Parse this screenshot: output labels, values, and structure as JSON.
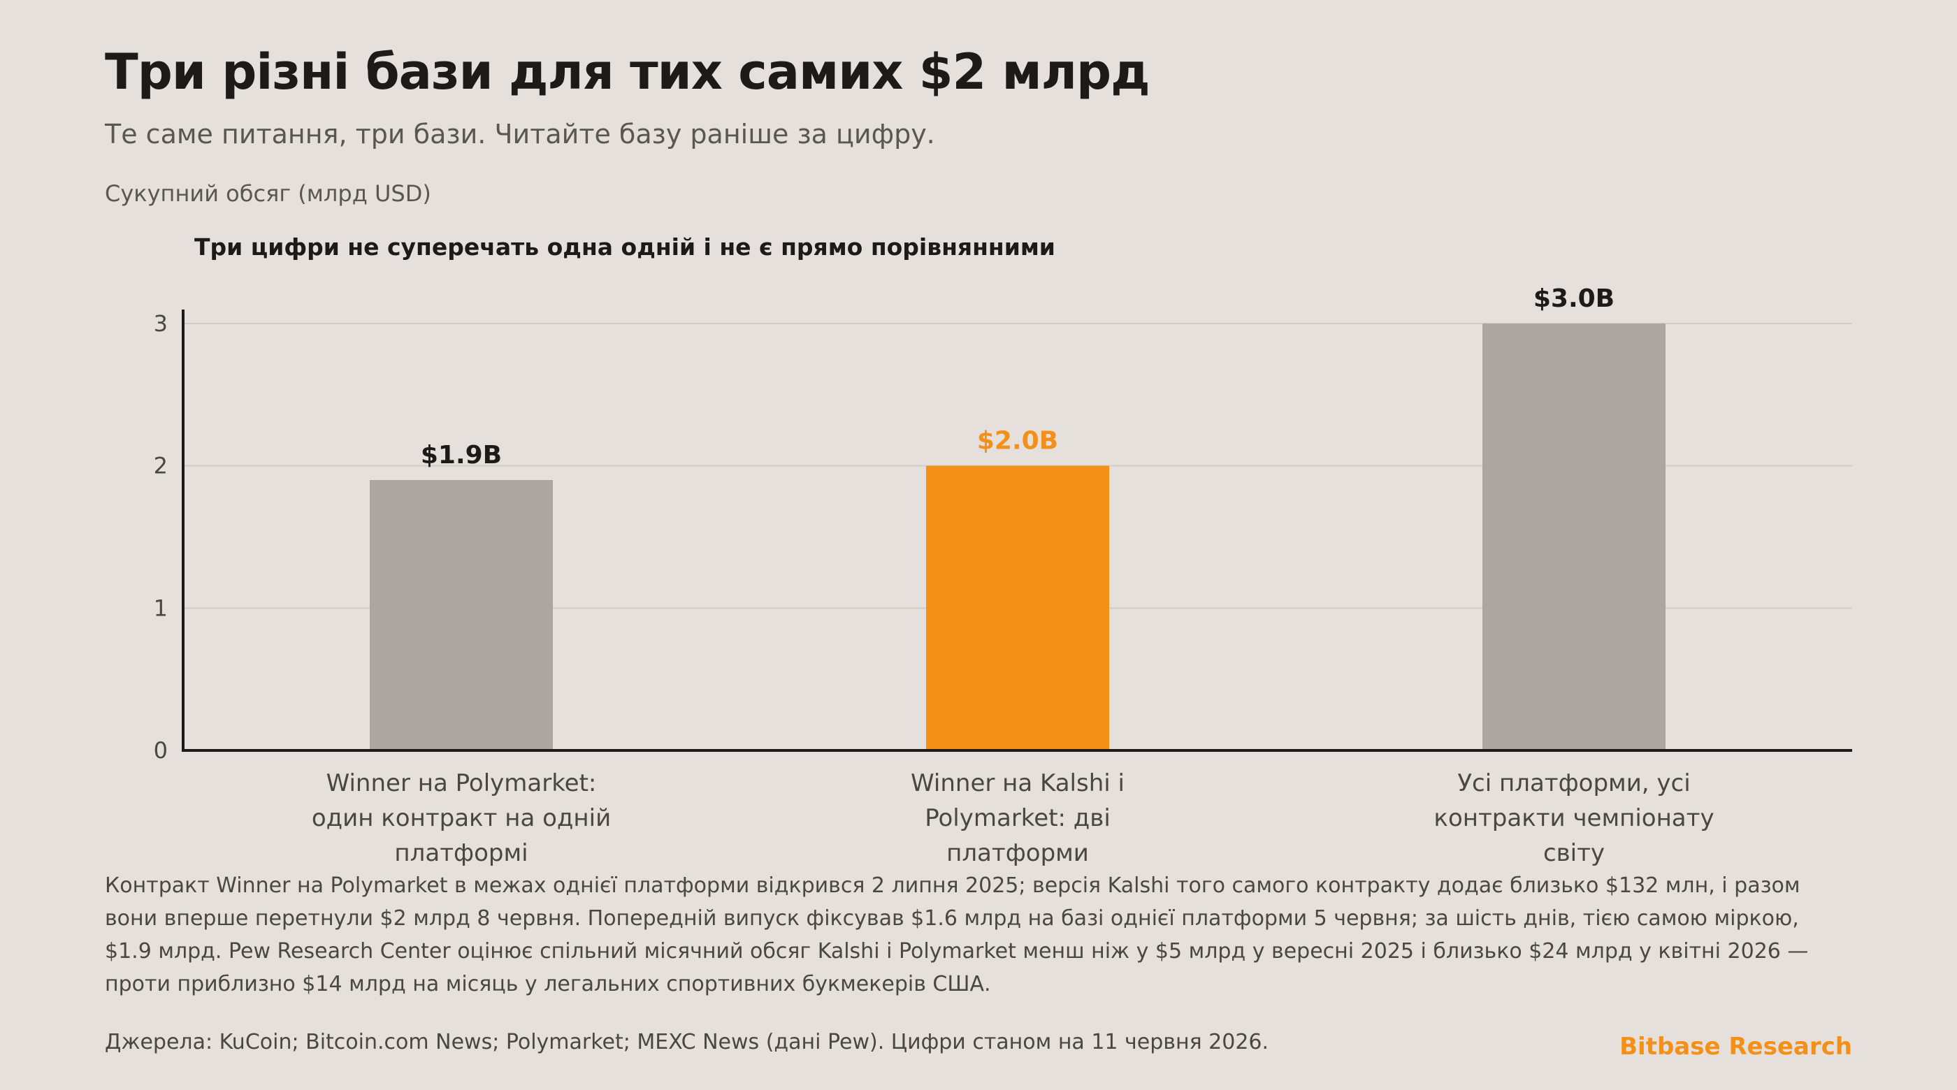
{
  "header": {
    "title": "Три різні бази для тих самих $2 млрд",
    "subtitle": "Те саме питання, три бази. Читайте базу раніше за цифру.",
    "unit_label": "Сукупний обсяг (млрд USD)",
    "chart_note": "Три цифри не суперечать одна одній і не є прямо порівнянними"
  },
  "chart_data": {
    "type": "bar",
    "categories": [
      [
        "Winner на Polymarket:",
        "один контракт на одній",
        "платформі"
      ],
      [
        "Winner на Kalshi і",
        "Polymarket: дві",
        "платформи"
      ],
      [
        "Усі платформи, усі",
        "контракти чемпіонату",
        "світу"
      ]
    ],
    "values": [
      1.9,
      2.0,
      3.0
    ],
    "value_labels": [
      "$1.9B",
      "$2.0B",
      "$3.0B"
    ],
    "ylabel": "Сукупний обсяг (млрд USD)",
    "ylim": [
      0,
      3
    ],
    "yticks": [
      0,
      1,
      2,
      3
    ],
    "grid": true,
    "highlight_index": 1,
    "colors": {
      "default_bar": "#aba6a0",
      "highlight_bar": "#f48f18",
      "default_label": "#1d1b19",
      "highlight_label": "#f48f18",
      "grid": "#d2ccc6",
      "axis": "#1d1b19",
      "tick_text": "#4a4743"
    }
  },
  "footer": {
    "description": "Контракт Winner на Polymarket в межах однієї платформи відкрився 2 липня 2025; версія Kalshi того самого контракту додає близько $132 млн, і разом вони вперше перетнули $2 млрд 8 червня. Попередній випуск фіксував $1.6 млрд на базі однієї платформи 5 червня; за шість днів, тією самою міркою, $1.9 млрд. Pew Research Center оцінює спільний місячний обсяг Kalshi і Polymarket менш ніж у $5 млрд у вересні 2025 і близько $24 млрд у квітні 2026 — проти приблизно $14 млрд на місяць у легальних спортивних букмекерів США.",
    "sources": "Джерела: KuCoin; Bitcoin.com News; Polymarket; MEXC News (дані Pew). Цифри станом на 11 червня 2026.",
    "brand": "Bitbase Research"
  }
}
